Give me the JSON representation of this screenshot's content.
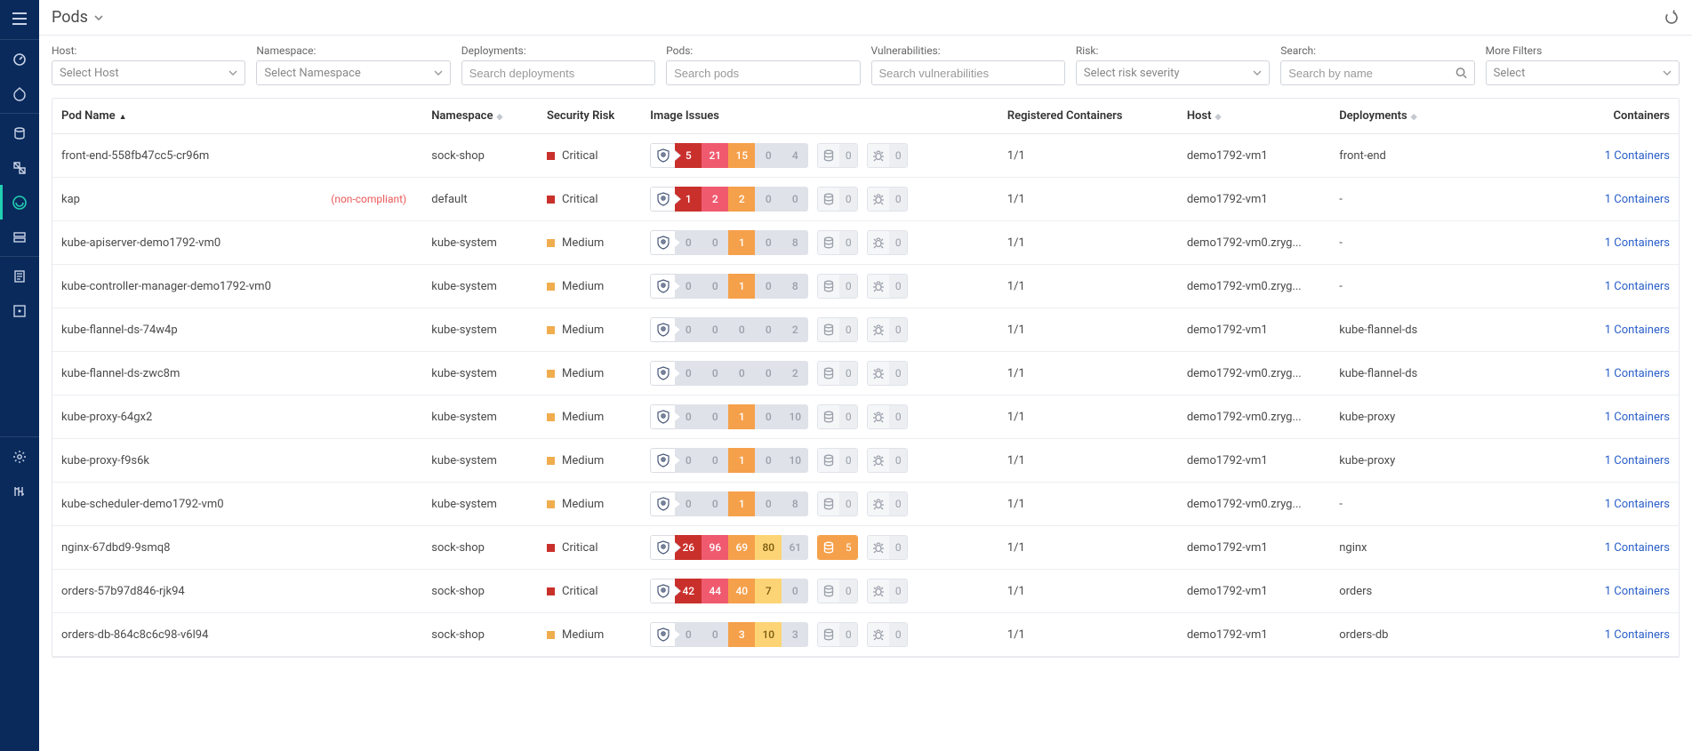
{
  "page": {
    "title": "Pods"
  },
  "colors": {
    "sidebar_bg": "#0a2a5c",
    "accent": "#21d0b2",
    "critical": "#c9302c",
    "high": "#ef5a6f",
    "medium": "#f5a04b",
    "low": "#fdd475",
    "negligible": "#dfe2e8",
    "link": "#2a5fc9",
    "noncompliant": "#e85a5a"
  },
  "filters": {
    "host": {
      "label": "Host:",
      "placeholder": "Select Host",
      "type": "select"
    },
    "namespace": {
      "label": "Namespace:",
      "placeholder": "Select Namespace",
      "type": "select"
    },
    "deployments": {
      "label": "Deployments:",
      "placeholder": "Search deployments",
      "type": "search"
    },
    "pods": {
      "label": "Pods:",
      "placeholder": "Search pods",
      "type": "search"
    },
    "vulnerabilities": {
      "label": "Vulnerabilities:",
      "placeholder": "Search vulnerabilities",
      "type": "search"
    },
    "risk": {
      "label": "Risk:",
      "placeholder": "Select risk severity",
      "type": "select"
    },
    "search": {
      "label": "Search:",
      "placeholder": "Search by name",
      "type": "searchicon"
    },
    "more": {
      "label": "More Filters",
      "placeholder": "Select",
      "type": "select"
    }
  },
  "columns": {
    "pod_name": "Pod Name",
    "namespace": "Namespace",
    "security_risk": "Security Risk",
    "image_issues": "Image Issues",
    "registered": "Registered Containers",
    "host": "Host",
    "deployments": "Deployments",
    "containers": "Containers"
  },
  "non_compliant_tag": "(non-compliant)",
  "rows": [
    {
      "name": "front-end-558fb47cc5-cr96m",
      "nonCompliant": false,
      "namespace": "sock-shop",
      "risk": "Critical",
      "sev": [
        5,
        21,
        15,
        0,
        4
      ],
      "sens": {
        "v": 0,
        "on": false
      },
      "mal": 0,
      "registered": "1/1",
      "host": "demo1792-vm1",
      "deployment": "front-end",
      "containers": "1 Containers"
    },
    {
      "name": "kap",
      "nonCompliant": true,
      "namespace": "default",
      "risk": "Critical",
      "sev": [
        1,
        2,
        2,
        0,
        0
      ],
      "sens": {
        "v": 0,
        "on": false
      },
      "mal": 0,
      "registered": "1/1",
      "host": "demo1792-vm1",
      "deployment": "-",
      "containers": "1 Containers"
    },
    {
      "name": "kube-apiserver-demo1792-vm0",
      "nonCompliant": false,
      "namespace": "kube-system",
      "risk": "Medium",
      "sev": [
        0,
        0,
        1,
        0,
        8
      ],
      "sens": {
        "v": 0,
        "on": false
      },
      "mal": 0,
      "registered": "1/1",
      "host": "demo1792-vm0.zryg...",
      "deployment": "-",
      "containers": "1 Containers"
    },
    {
      "name": "kube-controller-manager-demo1792-vm0",
      "nonCompliant": false,
      "namespace": "kube-system",
      "risk": "Medium",
      "sev": [
        0,
        0,
        1,
        0,
        8
      ],
      "sens": {
        "v": 0,
        "on": false
      },
      "mal": 0,
      "registered": "1/1",
      "host": "demo1792-vm0.zryg...",
      "deployment": "-",
      "containers": "1 Containers"
    },
    {
      "name": "kube-flannel-ds-74w4p",
      "nonCompliant": false,
      "namespace": "kube-system",
      "risk": "Medium",
      "sev": [
        0,
        0,
        0,
        0,
        2
      ],
      "sens": {
        "v": 0,
        "on": false
      },
      "mal": 0,
      "registered": "1/1",
      "host": "demo1792-vm1",
      "deployment": "kube-flannel-ds",
      "containers": "1 Containers"
    },
    {
      "name": "kube-flannel-ds-zwc8m",
      "nonCompliant": false,
      "namespace": "kube-system",
      "risk": "Medium",
      "sev": [
        0,
        0,
        0,
        0,
        2
      ],
      "sens": {
        "v": 0,
        "on": false
      },
      "mal": 0,
      "registered": "1/1",
      "host": "demo1792-vm0.zryg...",
      "deployment": "kube-flannel-ds",
      "containers": "1 Containers"
    },
    {
      "name": "kube-proxy-64gx2",
      "nonCompliant": false,
      "namespace": "kube-system",
      "risk": "Medium",
      "sev": [
        0,
        0,
        1,
        0,
        10
      ],
      "sens": {
        "v": 0,
        "on": false
      },
      "mal": 0,
      "registered": "1/1",
      "host": "demo1792-vm0.zryg...",
      "deployment": "kube-proxy",
      "containers": "1 Containers"
    },
    {
      "name": "kube-proxy-f9s6k",
      "nonCompliant": false,
      "namespace": "kube-system",
      "risk": "Medium",
      "sev": [
        0,
        0,
        1,
        0,
        10
      ],
      "sens": {
        "v": 0,
        "on": false
      },
      "mal": 0,
      "registered": "1/1",
      "host": "demo1792-vm1",
      "deployment": "kube-proxy",
      "containers": "1 Containers"
    },
    {
      "name": "kube-scheduler-demo1792-vm0",
      "nonCompliant": false,
      "namespace": "kube-system",
      "risk": "Medium",
      "sev": [
        0,
        0,
        1,
        0,
        8
      ],
      "sens": {
        "v": 0,
        "on": false
      },
      "mal": 0,
      "registered": "1/1",
      "host": "demo1792-vm0.zryg...",
      "deployment": "-",
      "containers": "1 Containers"
    },
    {
      "name": "nginx-67dbd9-9smq8",
      "nonCompliant": false,
      "namespace": "sock-shop",
      "risk": "Critical",
      "sev": [
        26,
        96,
        69,
        80,
        61
      ],
      "sens": {
        "v": 5,
        "on": true
      },
      "mal": 0,
      "registered": "1/1",
      "host": "demo1792-vm1",
      "deployment": "nginx",
      "containers": "1 Containers"
    },
    {
      "name": "orders-57b97d846-rjk94",
      "nonCompliant": false,
      "namespace": "sock-shop",
      "risk": "Critical",
      "sev": [
        42,
        44,
        40,
        7,
        0
      ],
      "sens": {
        "v": 0,
        "on": false
      },
      "mal": 0,
      "registered": "1/1",
      "host": "demo1792-vm1",
      "deployment": "orders",
      "containers": "1 Containers"
    },
    {
      "name": "orders-db-864c8c6c98-v6l94",
      "nonCompliant": false,
      "namespace": "sock-shop",
      "risk": "Medium",
      "sev": [
        0,
        0,
        3,
        10,
        3
      ],
      "sens": {
        "v": 0,
        "on": false
      },
      "mal": 0,
      "registered": "1/1",
      "host": "demo1792-vm1",
      "deployment": "orders-db",
      "containers": "1 Containers"
    }
  ]
}
